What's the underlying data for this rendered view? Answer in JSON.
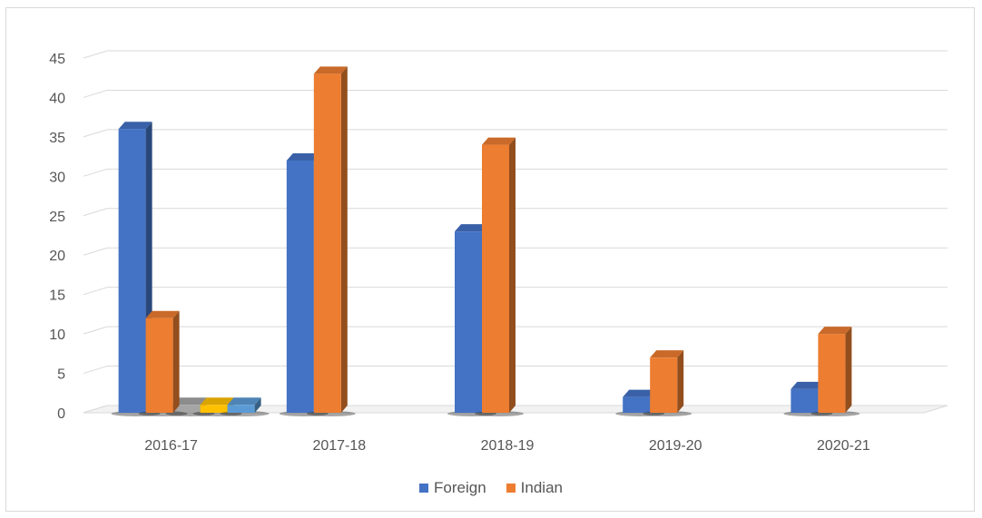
{
  "chart_data": {
    "type": "bar",
    "categories": [
      "2016-17",
      "2017-18",
      "2018-19",
      "2019-20",
      "2020-21"
    ],
    "series": [
      {
        "name": "Foreign",
        "values": [
          36,
          32,
          23,
          2,
          3
        ],
        "color": "#4472C4"
      },
      {
        "name": "Indian",
        "values": [
          12,
          43,
          34,
          7,
          10
        ],
        "color": "#ED7D31"
      }
    ],
    "extra_bars_2016_17": [
      {
        "value": 1,
        "color": "#A5A5A5"
      },
      {
        "value": 1,
        "color": "#FFC000"
      },
      {
        "value": 1,
        "color": "#5B9BD5"
      }
    ],
    "ylim": [
      0,
      45
    ],
    "yticks": [
      "0",
      "5",
      "10",
      "15",
      "20",
      "25",
      "30",
      "35",
      "40",
      "45"
    ],
    "grid": true,
    "legend_position": "bottom",
    "style": "3d-clustered-column"
  }
}
